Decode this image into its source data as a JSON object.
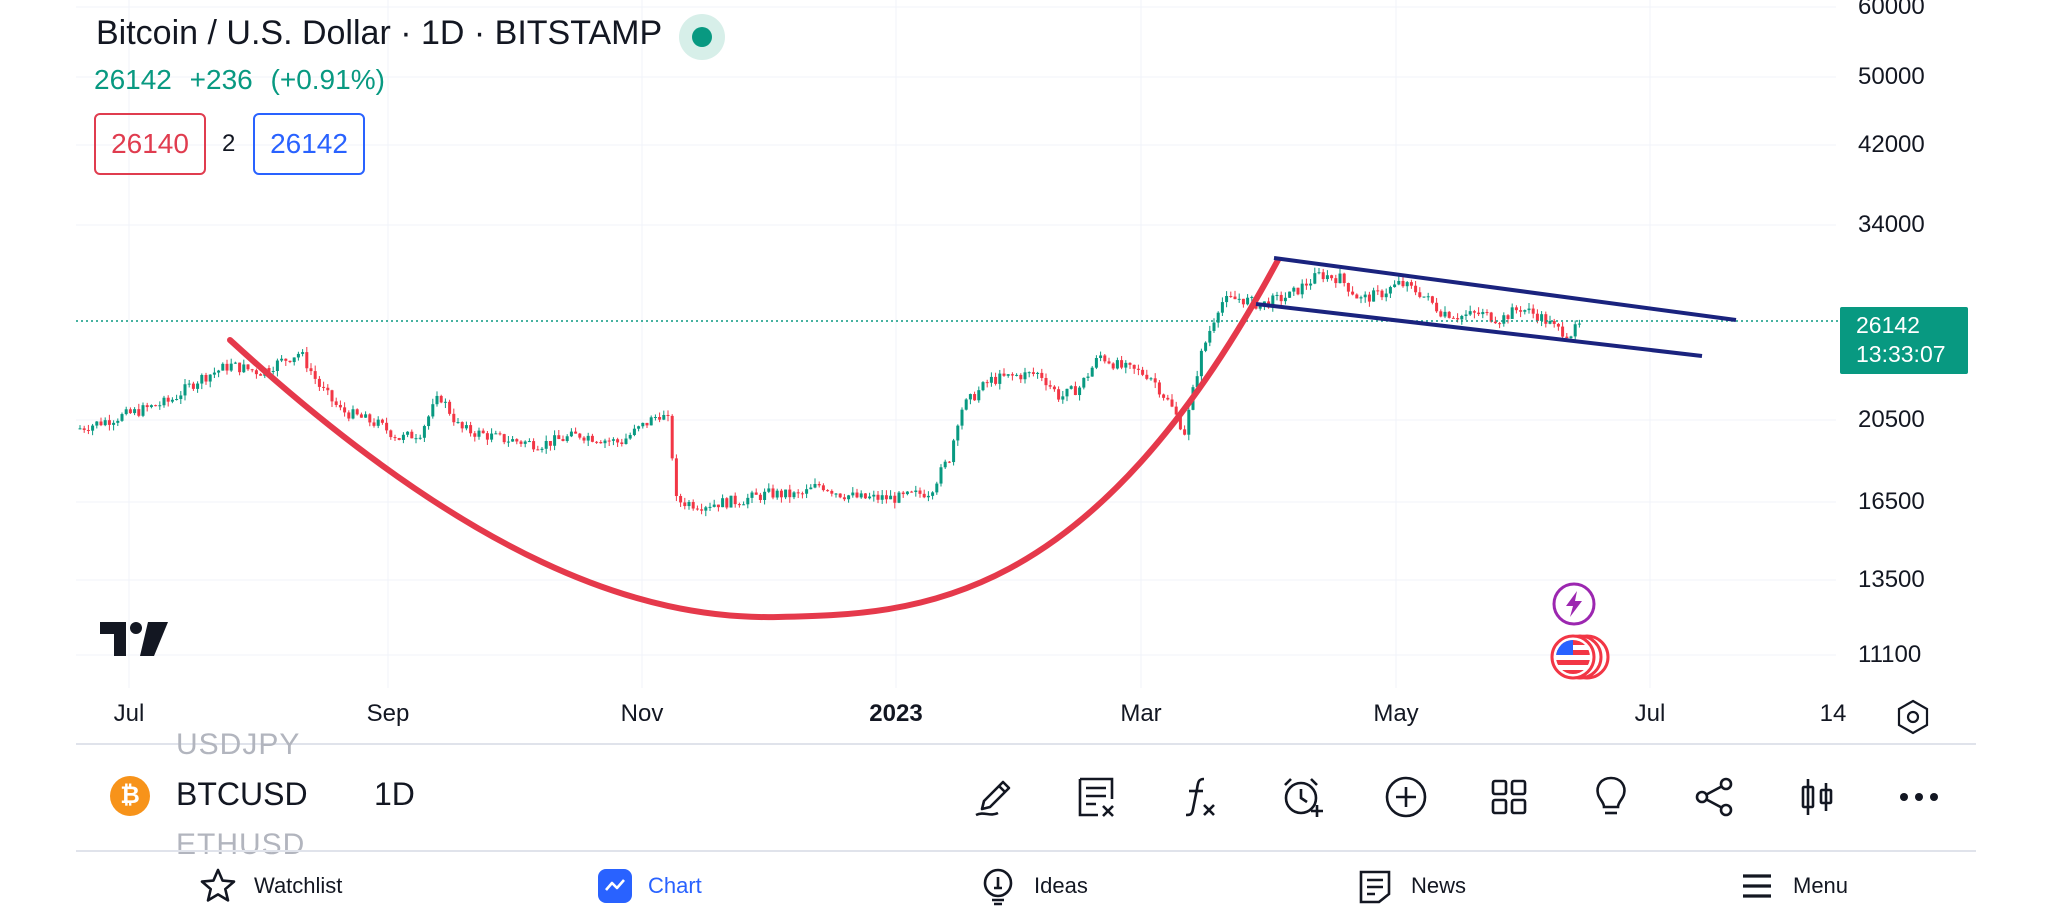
{
  "header": {
    "title": "Bitcoin / U.S. Dollar · 1D · BITSTAMP",
    "last": "26142",
    "change": "+236",
    "change_pct": "(+0.91%)",
    "bid": "26140",
    "spread": "2",
    "ask": "26142"
  },
  "price_axis": {
    "labels": [
      "60000",
      "50000",
      "42000",
      "34000",
      "20500",
      "16500",
      "13500",
      "11100"
    ],
    "last_price": "26142",
    "countdown": "13:33:07"
  },
  "time_axis": {
    "labels": [
      "Jul",
      "Sep",
      "Nov",
      "2023",
      "Mar",
      "May",
      "Jul",
      "14"
    ]
  },
  "chart_data": {
    "type": "candlestick",
    "symbol": "BTCUSD",
    "interval": "1D",
    "scale": "log",
    "x_range": [
      "Jun 2022",
      "Aug 14 2023"
    ],
    "y_ticks": [
      11100,
      13500,
      16500,
      20500,
      34000,
      42000,
      50000,
      60000
    ],
    "last_close": 26142,
    "approx_path": [
      {
        "x": "Jun 2022",
        "y": 20000
      },
      {
        "x": "mid Aug 2022",
        "y": 24400
      },
      {
        "x": "Sep 2022",
        "y": 19500
      },
      {
        "x": "early Nov 2022",
        "y": 21000
      },
      {
        "x": "late Nov 2022",
        "y": 15800
      },
      {
        "x": "Jan 2023",
        "y": 16600
      },
      {
        "x": "late Feb 2023",
        "y": 23400
      },
      {
        "x": "mid Mar 2023",
        "y": 19800
      },
      {
        "x": "Apr 2023",
        "y": 30000
      },
      {
        "x": "mid Jun 2023",
        "y": 25000
      },
      {
        "x": "late Jun 2023",
        "y": 26142
      }
    ],
    "drawings": [
      {
        "type": "curve",
        "color": "#e5394b",
        "description": "cup arc"
      },
      {
        "type": "channel",
        "color": "#1a237e",
        "description": "descending parallel channel"
      }
    ],
    "colors": {
      "up": "#089981",
      "down": "#f23645"
    }
  },
  "toolbar": {
    "ghost_prev": "USDJPY",
    "ghost_next": "ETHUSD",
    "symbol": "BTCUSD",
    "interval": "1D",
    "coin_glyph": "₿",
    "icons": [
      "pen-icon",
      "note-icon",
      "function-icon",
      "alarm-add-icon",
      "add-circle-icon",
      "grid-icon",
      "bulb-icon",
      "share-icon",
      "candles-icon",
      "more-icon"
    ]
  },
  "nav": {
    "watchlist": "Watchlist",
    "chart": "Chart",
    "ideas": "Ideas",
    "news": "News",
    "menu": "Menu"
  },
  "colors": {
    "accent": "#2962ff",
    "up": "#089981",
    "down": "#f23645",
    "cup": "#e5394b",
    "channel": "#1a237e"
  }
}
